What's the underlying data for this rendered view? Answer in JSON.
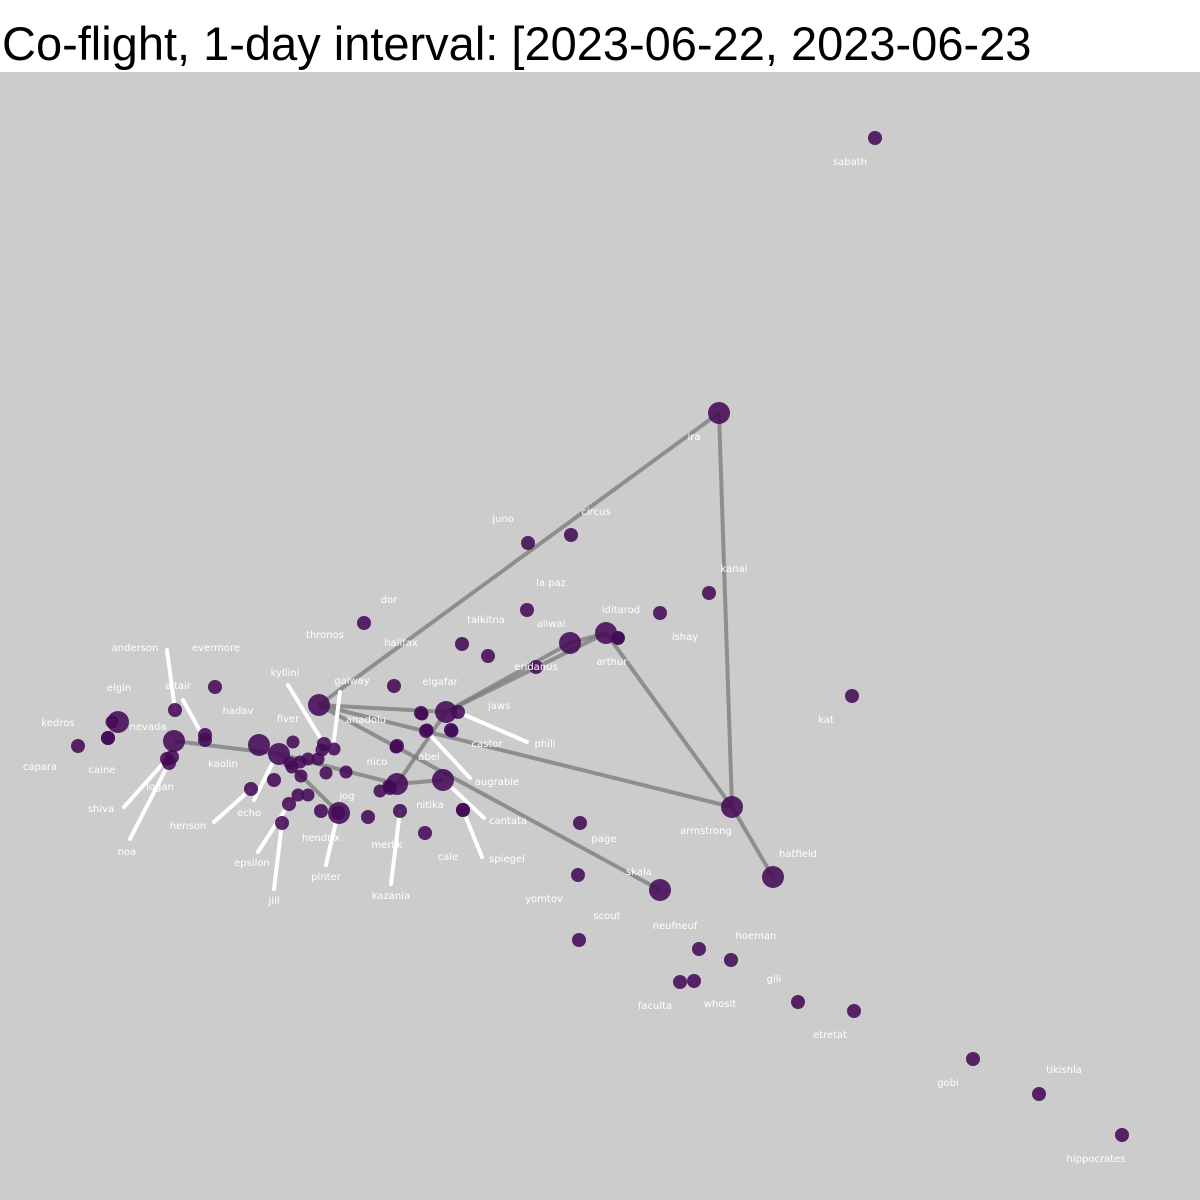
{
  "title": "Co-flight, 1-day interval: [2023-06-22, 2023-06-23",
  "colors": {
    "background": "#cccccc",
    "node": "#440a57",
    "edge": "#7a7a7a",
    "label": "#ffffff"
  },
  "network": {
    "nodes": [
      {
        "id": "sabath",
        "label": "sabath",
        "size": "small"
      },
      {
        "id": "ira",
        "label": "ira",
        "size": "large"
      },
      {
        "id": "juno",
        "label": "juno",
        "size": "small"
      },
      {
        "id": "circus",
        "label": "circus",
        "size": "small"
      },
      {
        "id": "kanai",
        "label": "kanai",
        "size": "small"
      },
      {
        "id": "la paz",
        "label": "la paz",
        "size": "small"
      },
      {
        "id": "iditarod",
        "label": "iditarod",
        "size": "small"
      },
      {
        "id": "dor",
        "label": "dor",
        "size": "small"
      },
      {
        "id": "talkitna",
        "label": "talkitna",
        "size": "small"
      },
      {
        "id": "aliwal",
        "label": "aliwal",
        "size": "large"
      },
      {
        "id": "arthur",
        "label": "arthur",
        "size": "large"
      },
      {
        "id": "ishay",
        "label": "ishay",
        "size": "small"
      },
      {
        "id": "thronos",
        "label": "thronos",
        "size": "large"
      },
      {
        "id": "halifax",
        "label": "halifax",
        "size": "small"
      },
      {
        "id": "eridanus",
        "label": "eridanus",
        "size": "small"
      },
      {
        "id": "anderson",
        "label": "anderson",
        "size": "small"
      },
      {
        "id": "evermore",
        "label": "evermore",
        "size": "small"
      },
      {
        "id": "kat",
        "label": "kat",
        "size": "small"
      },
      {
        "id": "galway",
        "label": "galway",
        "size": "small"
      },
      {
        "id": "elgafar",
        "label": "elgafar",
        "size": "large"
      },
      {
        "id": "elgin",
        "label": "elgin",
        "size": "large"
      },
      {
        "id": "altair",
        "label": "altair",
        "size": "small"
      },
      {
        "id": "kyllini",
        "label": "kyllini",
        "size": "small"
      },
      {
        "id": "jaws",
        "label": "jaws",
        "size": "small"
      },
      {
        "id": "hadav",
        "label": "hadav",
        "size": "small"
      },
      {
        "id": "kedros",
        "label": "kedros",
        "size": "small"
      },
      {
        "id": "nevada",
        "label": "nevada",
        "size": "large"
      },
      {
        "id": "fiver",
        "label": "fiver",
        "size": "large"
      },
      {
        "id": "anadolu",
        "label": "anadolu",
        "size": "small"
      },
      {
        "id": "castor",
        "label": "castor",
        "size": "small"
      },
      {
        "id": "phili",
        "label": "phili",
        "size": "small"
      },
      {
        "id": "capara",
        "label": "capara",
        "size": "small"
      },
      {
        "id": "caine",
        "label": "caine",
        "size": "small"
      },
      {
        "id": "kaolin",
        "label": "kaolin",
        "size": "large"
      },
      {
        "id": "abel",
        "label": "abel",
        "size": "small"
      },
      {
        "id": "nico",
        "label": "nico",
        "size": "large"
      },
      {
        "id": "augrabie",
        "label": "augrabie",
        "size": "large"
      },
      {
        "id": "logan",
        "label": "logan",
        "size": "small"
      },
      {
        "id": "armstrong",
        "label": "armstrong",
        "size": "large"
      },
      {
        "id": "shiva",
        "label": "shiva",
        "size": "small"
      },
      {
        "id": "echo",
        "label": "echo",
        "size": "small"
      },
      {
        "id": "jog",
        "label": "jog",
        "size": "large"
      },
      {
        "id": "nitika",
        "label": "nitika",
        "size": "small"
      },
      {
        "id": "henson",
        "label": "henson",
        "size": "small"
      },
      {
        "id": "cantata",
        "label": "cantata",
        "size": "small"
      },
      {
        "id": "hendrix",
        "label": "hendrix",
        "size": "small"
      },
      {
        "id": "page",
        "label": "page",
        "size": "small"
      },
      {
        "id": "merlik",
        "label": "merlik",
        "size": "small"
      },
      {
        "id": "noa",
        "label": "noa",
        "size": "small"
      },
      {
        "id": "hatfield",
        "label": "hatfield",
        "size": "large"
      },
      {
        "id": "cale",
        "label": "cale",
        "size": "small"
      },
      {
        "id": "spiegel",
        "label": "spiegel",
        "size": "small"
      },
      {
        "id": "epsilon",
        "label": "epsilon",
        "size": "small"
      },
      {
        "id": "skala",
        "label": "skala",
        "size": "large"
      },
      {
        "id": "pinter",
        "label": "pinter",
        "size": "small"
      },
      {
        "id": "kazania",
        "label": "kazania",
        "size": "small"
      },
      {
        "id": "jill",
        "label": "Jill",
        "size": "small"
      },
      {
        "id": "yomtov",
        "label": "yomtov",
        "size": "small"
      },
      {
        "id": "scout",
        "label": "scout",
        "size": "small"
      },
      {
        "id": "neufneuf",
        "label": "neufneuf",
        "size": "small"
      },
      {
        "id": "hoeman",
        "label": "hoeman",
        "size": "small"
      },
      {
        "id": "gili",
        "label": "gili",
        "size": "small"
      },
      {
        "id": "faculta",
        "label": "faculta",
        "size": "small"
      },
      {
        "id": "whosit",
        "label": "whosit",
        "size": "small"
      },
      {
        "id": "etretat",
        "label": "etretat",
        "size": "small"
      },
      {
        "id": "gobi",
        "label": "gobi",
        "size": "small"
      },
      {
        "id": "tikishla",
        "label": "tikishla",
        "size": "small"
      },
      {
        "id": "hippocrates",
        "label": "hippocrates",
        "size": "small"
      }
    ],
    "edges": [
      [
        "thronos",
        "ira"
      ],
      [
        "ira",
        "armstrong"
      ],
      [
        "arthur",
        "armstrong"
      ],
      [
        "armstrong",
        "hatfield"
      ],
      [
        "elgafar",
        "arthur"
      ],
      [
        "elgafar",
        "aliwal"
      ],
      [
        "aliwal",
        "arthur"
      ],
      [
        "thronos",
        "armstrong"
      ],
      [
        "thronos",
        "elgafar"
      ],
      [
        "thronos",
        "skala"
      ],
      [
        "nevada",
        "kaolin"
      ],
      [
        "kaolin",
        "nico"
      ],
      [
        "nico",
        "augrabie"
      ],
      [
        "nico",
        "elgafar"
      ],
      [
        "kaolin",
        "jog"
      ]
    ]
  }
}
